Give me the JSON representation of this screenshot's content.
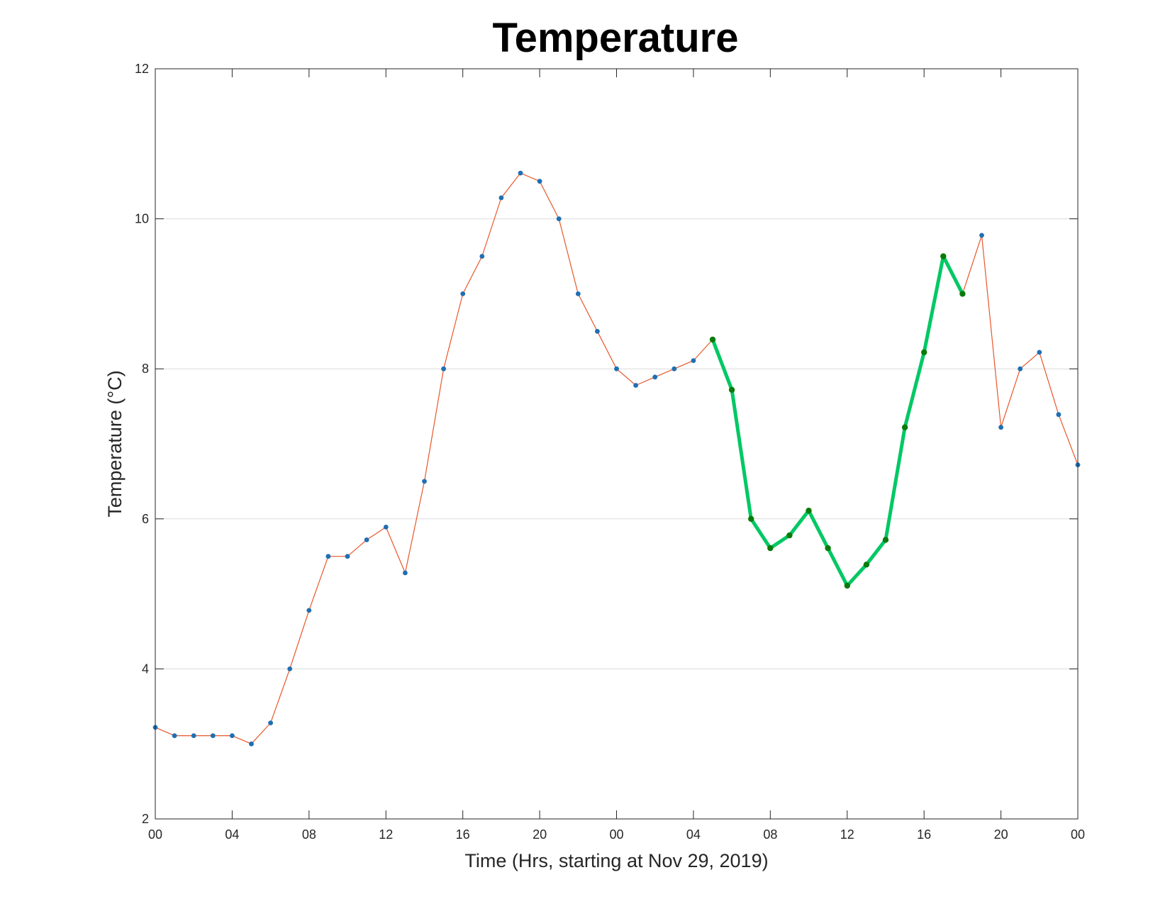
{
  "chart_data": {
    "type": "line",
    "title": "Temperature",
    "xlabel": "Time (Hrs, starting at Nov 29, 2019)",
    "ylabel": "Temperature (°C)",
    "xlim": [
      0,
      48
    ],
    "ylim": [
      2,
      12
    ],
    "x_ticks": [
      {
        "value": 0,
        "label": "00"
      },
      {
        "value": 4,
        "label": "04"
      },
      {
        "value": 8,
        "label": "08"
      },
      {
        "value": 12,
        "label": "12"
      },
      {
        "value": 16,
        "label": "16"
      },
      {
        "value": 20,
        "label": "20"
      },
      {
        "value": 24,
        "label": "00"
      },
      {
        "value": 28,
        "label": "04"
      },
      {
        "value": 32,
        "label": "08"
      },
      {
        "value": 36,
        "label": "12"
      },
      {
        "value": 40,
        "label": "16"
      },
      {
        "value": 44,
        "label": "20"
      },
      {
        "value": 48,
        "label": "00"
      }
    ],
    "y_ticks": [
      2,
      4,
      6,
      8,
      10,
      12
    ],
    "grid": "horizontal",
    "x": [
      0,
      1,
      2,
      3,
      4,
      5,
      6,
      7,
      8,
      9,
      10,
      11,
      12,
      13,
      14,
      15,
      16,
      17,
      18,
      19,
      20,
      21,
      22,
      23,
      24,
      25,
      26,
      27,
      28,
      29,
      30,
      31,
      32,
      33,
      34,
      35,
      36,
      37,
      38,
      39,
      40,
      41,
      42,
      43,
      44,
      45,
      46,
      47,
      48
    ],
    "series": [
      {
        "color": "#e8562a",
        "marker_color": "#1f6fb2",
        "line_width": "thin",
        "values": [
          3.22,
          3.11,
          3.11,
          3.11,
          3.11,
          3.0,
          3.28,
          4.0,
          4.78,
          5.5,
          5.5,
          5.72,
          5.89,
          5.28,
          6.5,
          8.0,
          9.0,
          9.5,
          10.28,
          10.61,
          10.5,
          10.0,
          9.0,
          8.5,
          8.0,
          7.78,
          7.89,
          8.0,
          8.11,
          8.39,
          7.72,
          6.0,
          5.61,
          5.78,
          6.11,
          5.61,
          5.11,
          5.39,
          5.72,
          7.22,
          8.22,
          9.5,
          9.0,
          9.78,
          7.22,
          8.0,
          8.22,
          7.39,
          6.72
        ]
      },
      {
        "color": "#00c864",
        "marker_color": "#0a7a0a",
        "line_width": "thick",
        "x": [
          29,
          30,
          31,
          32,
          33,
          34,
          35,
          36,
          37,
          38,
          39,
          40,
          41,
          42
        ],
        "values": [
          8.39,
          7.72,
          6.0,
          5.61,
          5.78,
          6.11,
          5.61,
          5.11,
          5.39,
          5.72,
          7.22,
          8.22,
          9.5,
          9.0
        ]
      }
    ]
  }
}
